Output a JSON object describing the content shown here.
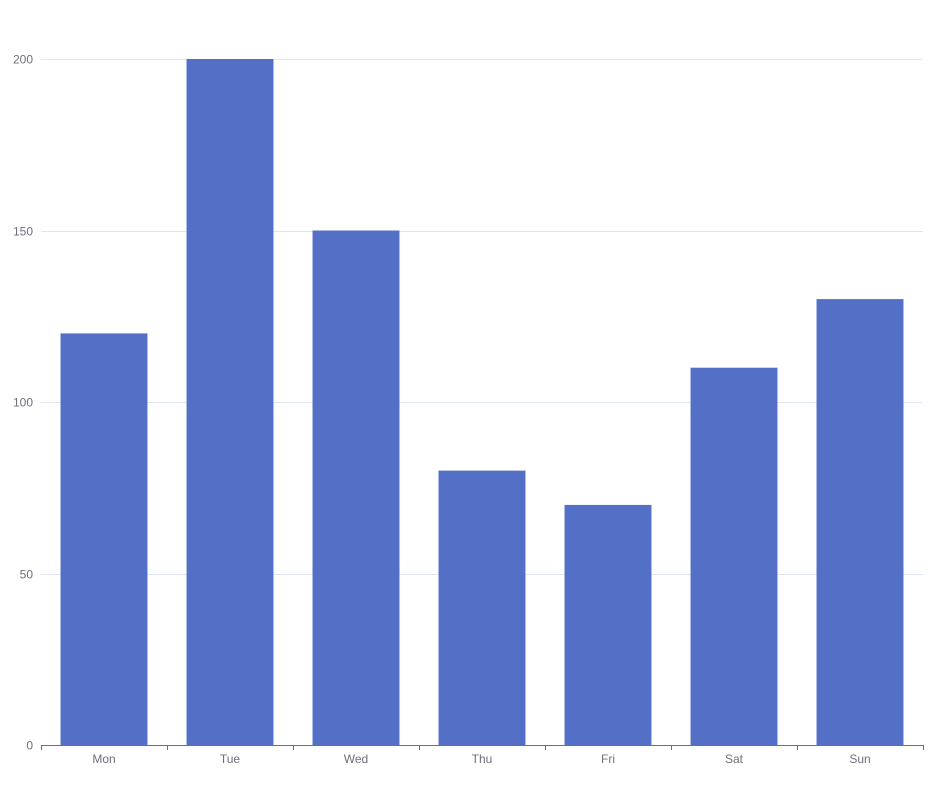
{
  "chart_data": {
    "type": "bar",
    "categories": [
      "Mon",
      "Tue",
      "Wed",
      "Thu",
      "Fri",
      "Sat",
      "Sun"
    ],
    "values": [
      120,
      200,
      150,
      80,
      70,
      110,
      130
    ],
    "yticks": [
      0,
      50,
      100,
      150,
      200
    ],
    "ylim": [
      0,
      200
    ],
    "title": "",
    "xlabel": "",
    "ylabel": "",
    "grid": true,
    "colors": {
      "bar": "#5470c6",
      "grid": "#e0e6f1",
      "axis": "#6e7079",
      "label": "#6e7079"
    }
  }
}
